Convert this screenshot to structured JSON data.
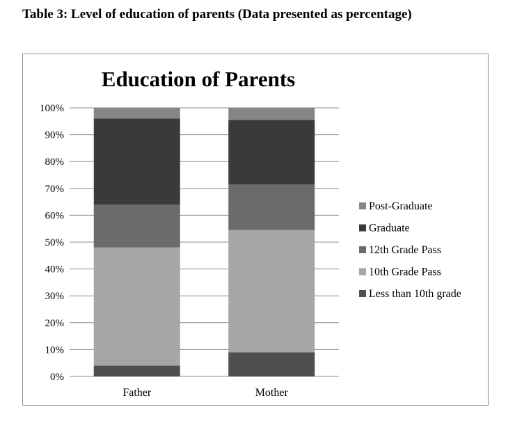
{
  "caption": "Table 3: Level of education of parents (Data presented as percentage)",
  "chart_data": {
    "type": "bar",
    "stacked": true,
    "percent_stacked": true,
    "title": "Education of Parents",
    "xlabel": "",
    "ylabel": "",
    "categories": [
      "Father",
      "Mother"
    ],
    "ylim": [
      0,
      100
    ],
    "yticks": [
      "0%",
      "10%",
      "20%",
      "30%",
      "40%",
      "50%",
      "60%",
      "70%",
      "80%",
      "90%",
      "100%"
    ],
    "grid": true,
    "legend_position": "right",
    "series": [
      {
        "name": "Less than 10th grade",
        "values": [
          4,
          9
        ],
        "color": "#4f4f4f"
      },
      {
        "name": "10th Grade Pass",
        "values": [
          44,
          45.5
        ],
        "color": "#a6a6a6"
      },
      {
        "name": "12th Grade Pass",
        "values": [
          16,
          17
        ],
        "color": "#6b6b6b"
      },
      {
        "name": "Graduate",
        "values": [
          32,
          24
        ],
        "color": "#3a3a3a"
      },
      {
        "name": "Post-Graduate",
        "values": [
          4,
          4.5
        ],
        "color": "#858585"
      }
    ]
  }
}
